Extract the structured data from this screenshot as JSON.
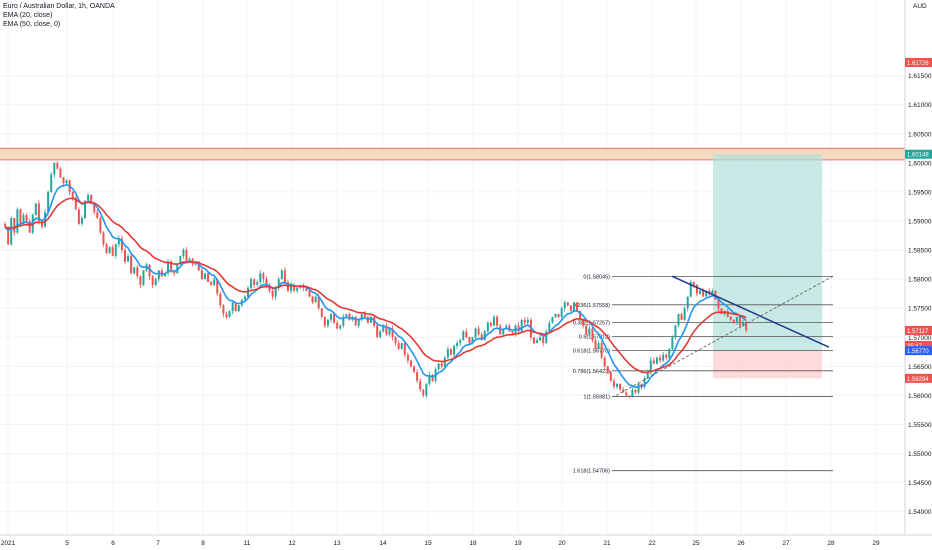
{
  "legend": {
    "symbol": "Euro / Australian Dollar, 1h, OANDA",
    "ema_fast": "EMA (20, close)",
    "ema_slow": "EMA (50, close, 0)"
  },
  "colors": {
    "up": "#26a69a",
    "down": "#ef5350",
    "ema_fast": "#2196f3",
    "ema_slow": "#e53935",
    "trend": "#1e3a8a",
    "fib": "#555555",
    "profit": "#b2dfdb",
    "loss": "#ffcdd2",
    "resistance": "#f0c090"
  },
  "chart_data": {
    "type": "candlestick",
    "y_axis_unit": "AUD",
    "ylim": [
      1.536,
      1.628
    ],
    "y_ticks": [
      "1.61500",
      "1.61000",
      "1.60500",
      "1.60000",
      "1.59500",
      "1.59000",
      "1.58500",
      "1.58000",
      "1.57500",
      "1.57000",
      "1.56500",
      "1.56000",
      "1.55500",
      "1.55000",
      "1.54500",
      "1.54000"
    ],
    "x_ticks": [
      "2021",
      "5",
      "6",
      "7",
      "8",
      "11",
      "12",
      "13",
      "14",
      "15",
      "18",
      "19",
      "20",
      "21",
      "22",
      "25",
      "26",
      "27",
      "28",
      "29"
    ],
    "price_labels": [
      {
        "value": 1.61726,
        "text": "1.61726",
        "color": "#ef5350"
      },
      {
        "value": 1.60148,
        "text": "1.60148",
        "color": "#26a69a"
      },
      {
        "value": 1.57117,
        "text": "1.57117",
        "color": "#ef5350"
      },
      {
        "value": 1.5686,
        "text": "35:47",
        "color": "#ef5350"
      },
      {
        "value": 1.5677,
        "text": "1.56770",
        "color": "#2962ff"
      },
      {
        "value": 1.56294,
        "text": "1.56294",
        "color": "#ef5350"
      }
    ],
    "resistance_zone": [
      1.6005,
      1.6025
    ],
    "fib_levels": [
      {
        "ratio": "0",
        "value": 1.58045,
        "label": "0(1.58045)"
      },
      {
        "ratio": "0.236",
        "value": 1.57558,
        "label": "0.236(1.57558)"
      },
      {
        "ratio": "0.382",
        "value": 1.57257,
        "label": "0.382(1.57257)"
      },
      {
        "ratio": "0.5",
        "value": 1.57013,
        "label": "0.5(1.57013)"
      },
      {
        "ratio": "0.618",
        "value": 1.5677,
        "label": "0.618(1.56770)"
      },
      {
        "ratio": "0.786",
        "value": 1.56423,
        "label": "0.786(1.56423)"
      },
      {
        "ratio": "1",
        "value": 1.55981,
        "label": "1(1.55981)"
      },
      {
        "ratio": "1.618",
        "value": 1.54706,
        "label": "1.618(1.54706)"
      }
    ],
    "position": {
      "entry": 1.5677,
      "target": 1.60148,
      "stop": 1.56294
    },
    "price_path": [
      [
        0,
        1.5895
      ],
      [
        3,
        1.589
      ],
      [
        6,
        1.586
      ],
      [
        9,
        1.5905
      ],
      [
        12,
        1.588
      ],
      [
        15,
        1.592
      ],
      [
        18,
        1.5895
      ],
      [
        21,
        1.591
      ],
      [
        24,
        1.59
      ],
      [
        27,
        1.588
      ],
      [
        30,
        1.591
      ],
      [
        33,
        1.593
      ],
      [
        36,
        1.59
      ],
      [
        39,
        1.589
      ],
      [
        42,
        1.5915
      ],
      [
        45,
        1.595
      ],
      [
        48,
        1.598
      ],
      [
        51,
        1.6
      ],
      [
        54,
        1.599
      ],
      [
        57,
        1.5975
      ],
      [
        60,
        1.5965
      ],
      [
        63,
        1.597
      ],
      [
        66,
        1.595
      ],
      [
        69,
        1.594
      ],
      [
        72,
        1.592
      ],
      [
        75,
        1.5895
      ],
      [
        78,
        1.5905
      ],
      [
        81,
        1.5935
      ],
      [
        84,
        1.5945
      ],
      [
        87,
        1.593
      ],
      [
        90,
        1.5915
      ],
      [
        93,
        1.5905
      ],
      [
        96,
        1.588
      ],
      [
        99,
        1.586
      ],
      [
        102,
        1.5845
      ],
      [
        105,
        1.5855
      ],
      [
        108,
        1.584
      ],
      [
        111,
        1.586
      ],
      [
        114,
        1.587
      ],
      [
        117,
        1.585
      ],
      [
        120,
        1.583
      ],
      [
        123,
        1.584
      ],
      [
        126,
        1.581
      ],
      [
        129,
        1.582
      ],
      [
        132,
        1.5805
      ],
      [
        135,
        1.579
      ],
      [
        138,
        1.5815
      ],
      [
        141,
        1.5825
      ],
      [
        144,
        1.5805
      ],
      [
        147,
        1.579
      ],
      [
        150,
        1.58
      ],
      [
        153,
        1.5815
      ],
      [
        156,
        1.5805
      ],
      [
        159,
        1.581
      ],
      [
        162,
        1.583
      ],
      [
        165,
        1.5815
      ],
      [
        168,
        1.581
      ],
      [
        171,
        1.5825
      ],
      [
        174,
        1.584
      ],
      [
        177,
        1.585
      ],
      [
        180,
        1.583
      ],
      [
        183,
        1.5835
      ],
      [
        186,
        1.5825
      ],
      [
        189,
        1.583
      ],
      [
        192,
        1.5815
      ],
      [
        195,
        1.58
      ],
      [
        198,
        1.581
      ],
      [
        201,
        1.5795
      ],
      [
        204,
        1.579
      ],
      [
        207,
        1.58
      ],
      [
        210,
        1.5775
      ],
      [
        213,
        1.5755
      ],
      [
        216,
        1.574
      ],
      [
        219,
        1.5735
      ],
      [
        222,
        1.5745
      ],
      [
        225,
        1.576
      ],
      [
        228,
        1.5745
      ],
      [
        231,
        1.5755
      ],
      [
        234,
        1.5765
      ],
      [
        237,
        1.577
      ],
      [
        240,
        1.5785
      ],
      [
        243,
        1.58
      ],
      [
        246,
        1.579
      ],
      [
        249,
        1.5795
      ],
      [
        252,
        1.581
      ],
      [
        255,
        1.58
      ],
      [
        258,
        1.579
      ],
      [
        261,
        1.578
      ],
      [
        264,
        1.577
      ],
      [
        267,
        1.5785
      ],
      [
        270,
        1.58
      ],
      [
        273,
        1.5815
      ],
      [
        276,
        1.5795
      ],
      [
        279,
        1.578
      ],
      [
        282,
        1.579
      ],
      [
        285,
        1.578
      ],
      [
        288,
        1.5785
      ],
      [
        291,
        1.579
      ],
      [
        294,
        1.5785
      ],
      [
        297,
        1.578
      ],
      [
        300,
        1.577
      ],
      [
        303,
        1.576
      ],
      [
        306,
        1.577
      ],
      [
        309,
        1.575
      ],
      [
        312,
        1.5735
      ],
      [
        315,
        1.572
      ],
      [
        318,
        1.573
      ],
      [
        321,
        1.574
      ],
      [
        324,
        1.5725
      ],
      [
        327,
        1.5715
      ],
      [
        330,
        1.572
      ],
      [
        333,
        1.5735
      ],
      [
        336,
        1.574
      ],
      [
        339,
        1.573
      ],
      [
        342,
        1.5735
      ],
      [
        345,
        1.572
      ],
      [
        348,
        1.573
      ],
      [
        351,
        1.574
      ],
      [
        354,
        1.5735
      ],
      [
        357,
        1.5725
      ],
      [
        360,
        1.5735
      ],
      [
        363,
        1.572
      ],
      [
        366,
        1.57
      ],
      [
        369,
        1.571
      ],
      [
        372,
        1.572
      ],
      [
        375,
        1.5705
      ],
      [
        378,
        1.5715
      ],
      [
        381,
        1.57
      ],
      [
        384,
        1.569
      ],
      [
        387,
        1.568
      ],
      [
        390,
        1.569
      ],
      [
        393,
        1.567
      ],
      [
        396,
        1.566
      ],
      [
        399,
        1.565
      ],
      [
        402,
        1.564
      ],
      [
        405,
        1.5625
      ],
      [
        408,
        1.561
      ],
      [
        411,
        1.56
      ],
      [
        414,
        1.562
      ],
      [
        417,
        1.5635
      ],
      [
        420,
        1.5625
      ],
      [
        423,
        1.5645
      ],
      [
        426,
        1.5655
      ],
      [
        429,
        1.565
      ],
      [
        432,
        1.5665
      ],
      [
        435,
        1.568
      ],
      [
        438,
        1.567
      ],
      [
        441,
        1.5685
      ],
      [
        444,
        1.569
      ],
      [
        447,
        1.5695
      ],
      [
        450,
        1.571
      ],
      [
        453,
        1.57
      ],
      [
        456,
        1.569
      ],
      [
        459,
        1.57
      ],
      [
        462,
        1.5715
      ],
      [
        465,
        1.5705
      ],
      [
        468,
        1.5695
      ],
      [
        471,
        1.571
      ],
      [
        474,
        1.5725
      ],
      [
        477,
        1.572
      ],
      [
        480,
        1.5735
      ],
      [
        483,
        1.572
      ],
      [
        486,
        1.5705
      ],
      [
        489,
        1.5715
      ],
      [
        492,
        1.572
      ],
      [
        495,
        1.571
      ],
      [
        498,
        1.5705
      ],
      [
        501,
        1.572
      ],
      [
        504,
        1.571
      ],
      [
        507,
        1.573
      ],
      [
        510,
        1.5725
      ],
      [
        513,
        1.573
      ],
      [
        516,
        1.57
      ],
      [
        519,
        1.569
      ],
      [
        522,
        1.5695
      ],
      [
        525,
        1.57
      ],
      [
        528,
        1.569
      ],
      [
        531,
        1.571
      ],
      [
        534,
        1.5725
      ],
      [
        537,
        1.5735
      ],
      [
        540,
        1.574
      ],
      [
        543,
        1.5735
      ],
      [
        546,
        1.575
      ],
      [
        549,
        1.576
      ],
      [
        552,
        1.5755
      ],
      [
        555,
        1.5745
      ],
      [
        558,
        1.576
      ],
      [
        561,
        1.5745
      ],
      [
        564,
        1.573
      ],
      [
        567,
        1.572
      ],
      [
        570,
        1.5705
      ],
      [
        573,
        1.5715
      ],
      [
        576,
        1.5695
      ],
      [
        579,
        1.568
      ],
      [
        582,
        1.569
      ],
      [
        585,
        1.5665
      ],
      [
        588,
        1.565
      ],
      [
        591,
        1.564
      ],
      [
        594,
        1.5625
      ],
      [
        597,
        1.5615
      ],
      [
        600,
        1.562
      ],
      [
        603,
        1.561
      ],
      [
        606,
        1.5605
      ],
      [
        609,
        1.56
      ],
      [
        612,
        1.5598
      ],
      [
        615,
        1.561
      ],
      [
        618,
        1.5605
      ],
      [
        621,
        1.562
      ],
      [
        624,
        1.5615
      ],
      [
        627,
        1.563
      ],
      [
        630,
        1.564
      ],
      [
        633,
        1.566
      ],
      [
        636,
        1.5655
      ],
      [
        639,
        1.5665
      ],
      [
        642,
        1.566
      ],
      [
        645,
        1.567
      ],
      [
        648,
        1.5665
      ],
      [
        651,
        1.568
      ],
      [
        654,
        1.57
      ],
      [
        657,
        1.572
      ],
      [
        660,
        1.574
      ],
      [
        663,
        1.573
      ],
      [
        666,
        1.575
      ],
      [
        669,
        1.577
      ],
      [
        672,
        1.5795
      ],
      [
        675,
        1.579
      ],
      [
        678,
        1.5775
      ],
      [
        681,
        1.578
      ],
      [
        684,
        1.577
      ],
      [
        687,
        1.578
      ],
      [
        690,
        1.5775
      ],
      [
        693,
        1.578
      ],
      [
        696,
        1.5765
      ],
      [
        699,
        1.575
      ],
      [
        702,
        1.574
      ],
      [
        705,
        1.5745
      ],
      [
        708,
        1.5735
      ],
      [
        711,
        1.573
      ],
      [
        714,
        1.5725
      ],
      [
        717,
        1.5735
      ],
      [
        720,
        1.572
      ],
      [
        723,
        1.5725
      ],
      [
        726,
        1.5712
      ]
    ]
  }
}
